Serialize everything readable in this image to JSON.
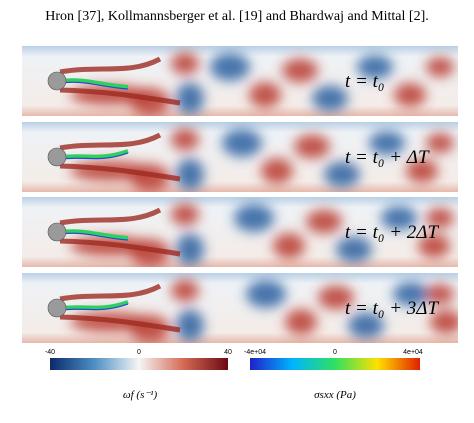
{
  "caption_line": "Hron [37], Kollmannsberger et al. [19] and Bhardwaj and Mittal [2].",
  "panels": [
    {
      "label": "t = t₀"
    },
    {
      "label": "t = t₀ + ΔT"
    },
    {
      "label": "t = t₀ + 2ΔT"
    },
    {
      "label": "t = t₀ + 3ΔT"
    }
  ],
  "colorbars": [
    {
      "ticks": [
        "-40",
        "0",
        "40"
      ],
      "label": "ωf (s⁻¹)"
    },
    {
      "ticks": [
        "-4e+04",
        "0",
        "4e+04"
      ],
      "label": "σsxx (Pa)"
    }
  ]
}
